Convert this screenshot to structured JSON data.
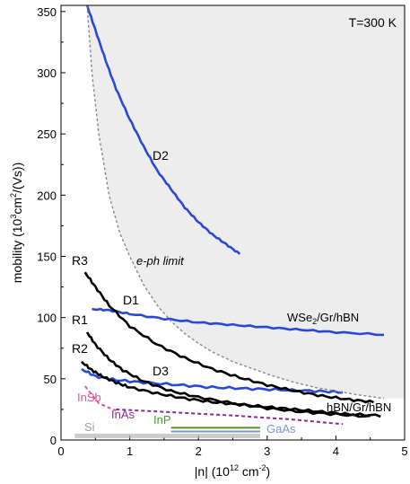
{
  "chart_data": {
    "type": "line",
    "annotation_top_right": "T=300 K",
    "xlabel": "|n| (10",
    "xlabel_sup": "12",
    "xlabel_tail": " cm",
    "xlabel_sup2": "-2",
    "xlabel_close": ")",
    "ylabel": "mobility (10",
    "ylabel_sup": "3",
    "ylabel_mid": "cm",
    "ylabel_sup2": "2",
    "ylabel_tail": "/(Vs))",
    "xlim": [
      0,
      5
    ],
    "ylim": [
      0,
      355
    ],
    "xticks": [
      "0",
      "1",
      "2",
      "3",
      "4",
      "5"
    ],
    "yticks": [
      "0",
      "50",
      "100",
      "150",
      "200",
      "250",
      "300",
      "350"
    ],
    "eph_limit": {
      "label": "e-ph limit",
      "x": [
        0.38,
        0.45,
        0.55,
        0.7,
        0.85,
        1.0,
        1.2,
        1.4,
        1.6,
        1.8,
        2.0,
        2.2,
        2.5,
        2.8,
        3.1,
        3.4,
        3.7,
        4.0,
        4.3,
        4.7
      ],
      "y": [
        355,
        300,
        250,
        200,
        170,
        150,
        127,
        110,
        97,
        87,
        79,
        72,
        64,
        58,
        52,
        47,
        43,
        40,
        37,
        34
      ]
    },
    "series": [
      {
        "name": "D2",
        "color": "#2b47d6",
        "x": [
          0.38,
          0.5,
          0.65,
          0.8,
          1.0,
          1.2,
          1.4,
          1.6,
          1.8,
          2.0,
          2.2,
          2.4,
          2.6
        ],
        "y": [
          355,
          335,
          310,
          287,
          262,
          240,
          220,
          205,
          190,
          178,
          168,
          160,
          152
        ]
      },
      {
        "name": "D1",
        "color": "#2b47d6",
        "x": [
          0.45,
          0.7,
          1.0,
          1.5,
          2.0,
          2.5,
          3.0,
          3.5,
          4.0,
          4.7
        ],
        "y": [
          107,
          106,
          103,
          99,
          96,
          94,
          92,
          90,
          88,
          86
        ]
      },
      {
        "name": "D3",
        "color": "#2b47d6",
        "x": [
          0.3,
          0.5,
          0.8,
          1.2,
          1.7,
          2.2,
          2.7,
          3.2,
          3.7,
          4.1
        ],
        "y": [
          58,
          52,
          49,
          47,
          45,
          43,
          42,
          41,
          40,
          39
        ]
      },
      {
        "name": "R3",
        "color": "#000000",
        "x": [
          0.35,
          0.5,
          0.7,
          1.0,
          1.4,
          1.8,
          2.2,
          2.6,
          3.0,
          3.4,
          3.8,
          4.2,
          4.55
        ],
        "y": [
          137,
          125,
          110,
          93,
          78,
          67,
          58,
          51,
          45,
          40,
          36,
          33,
          31
        ]
      },
      {
        "name": "R1",
        "color": "#000000",
        "x": [
          0.38,
          0.5,
          0.7,
          0.9,
          1.2,
          1.6,
          2.0,
          2.5,
          3.0,
          3.5,
          4.0,
          4.5
        ],
        "y": [
          88,
          78,
          66,
          57,
          48,
          40,
          35,
          30,
          26,
          23,
          21,
          19
        ]
      },
      {
        "name": "R2",
        "color": "#000000",
        "x": [
          0.3,
          0.45,
          0.6,
          0.8,
          1.0,
          1.4,
          1.8,
          2.2,
          2.6,
          3.0,
          3.4,
          3.8,
          4.2,
          4.65
        ],
        "y": [
          64,
          57,
          52,
          47,
          43,
          38,
          34,
          31,
          29,
          27,
          25,
          23,
          21,
          20
        ]
      }
    ],
    "materials": [
      {
        "name": "InSb",
        "color": "#e0569a",
        "style": "dashed",
        "x": [
          0.35,
          0.55,
          0.8
        ],
        "y": [
          44,
          30,
          24
        ]
      },
      {
        "name": "InAs",
        "color": "#8a2a9c",
        "style": "dashed",
        "x": [
          0.8,
          1.5,
          2.5,
          3.3,
          4.1
        ],
        "y": [
          25,
          23,
          20,
          17,
          13
        ]
      },
      {
        "name": "InP",
        "color": "#4d9a2a",
        "style": "solid",
        "x": [
          1.6,
          2.9
        ],
        "y": [
          10,
          10
        ]
      },
      {
        "name": "GaAs",
        "color": "#7e95cf",
        "style": "solid",
        "x": [
          1.6,
          2.9
        ],
        "y": [
          7,
          7
        ]
      },
      {
        "name": "Si",
        "color": "#b5b5b5",
        "style": "band",
        "x": [
          0.2,
          2.9
        ],
        "y": [
          3,
          3
        ]
      }
    ],
    "labels": {
      "D2": "D2",
      "D1": "D1",
      "D3": "D3",
      "R1": "R1",
      "R2": "R2",
      "R3": "R3",
      "wse2_pre": "WSe",
      "wse2_sub": "2",
      "wse2_post": "/Gr/hBN",
      "hbn": "hBN/Gr/hBN",
      "InSb": "InSb",
      "InAs": "InAs",
      "InP": "InP",
      "GaAs": "GaAs",
      "Si": "Si"
    }
  }
}
